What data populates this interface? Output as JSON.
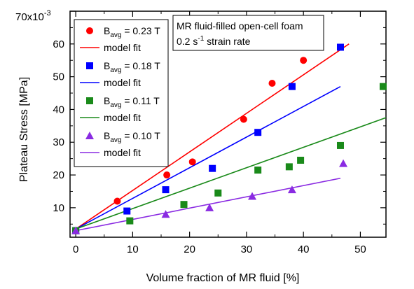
{
  "chart_data": {
    "type": "scatter",
    "xlabel": "Volume fraction of MR fluid [%]",
    "ylabel": "Plateau Stress [MPa]",
    "xlim": [
      -1,
      54.5
    ],
    "ylim": [
      1,
      70
    ],
    "x_ticks": [
      0,
      10,
      20,
      30,
      40,
      50
    ],
    "y_ticks": [
      10,
      20,
      30,
      40,
      50,
      60
    ],
    "y_top_label": "70x10",
    "y_top_exponent": "-3",
    "annotation": {
      "line1": "MR fluid-filled open-cell foam",
      "line2_prefix": "0.2 s",
      "line2_exponent": "-1",
      "line2_suffix": " strain rate"
    },
    "grid": false,
    "legend_position": "top-left",
    "series": [
      {
        "label_prefix": "B",
        "label_sub": "avg",
        "label_suffix": " = 0.23 T",
        "fit_label": "model fit",
        "marker": "circle",
        "color": "#ff0000",
        "points": [
          [
            0,
            3.0
          ],
          [
            7.3,
            12.0
          ],
          [
            16.0,
            20.0
          ],
          [
            20.5,
            24.0
          ],
          [
            29.5,
            37.0
          ],
          [
            34.5,
            48.0
          ],
          [
            40.0,
            55.0
          ]
        ],
        "fit": [
          [
            0,
            3.5
          ],
          [
            48,
            60.0
          ]
        ]
      },
      {
        "label_prefix": "B",
        "label_sub": "avg",
        "label_suffix": " = 0.18 T",
        "fit_label": "model fit",
        "marker": "square",
        "color": "#0000ff",
        "points": [
          [
            0,
            3.0
          ],
          [
            9.0,
            9.0
          ],
          [
            15.8,
            15.5
          ],
          [
            24.0,
            22.0
          ],
          [
            32.0,
            33.0
          ],
          [
            38.0,
            47.0
          ],
          [
            46.5,
            59.0
          ]
        ],
        "fit": [
          [
            0,
            3.5
          ],
          [
            46.5,
            47.0
          ]
        ]
      },
      {
        "label_prefix": "B",
        "label_sub": "avg",
        "label_suffix": " = 0.11 T",
        "fit_label": "model fit",
        "marker": "square",
        "color": "#1a8a1a",
        "points": [
          [
            0,
            3.0
          ],
          [
            9.5,
            6.0
          ],
          [
            19.0,
            11.0
          ],
          [
            25.0,
            14.5
          ],
          [
            32.0,
            21.5
          ],
          [
            37.5,
            22.5
          ],
          [
            39.5,
            24.5
          ],
          [
            46.5,
            29.0
          ],
          [
            54.0,
            47.0
          ]
        ],
        "fit": [
          [
            0,
            3.5
          ],
          [
            54.5,
            37.5
          ]
        ]
      },
      {
        "label_prefix": "B",
        "label_sub": "avg",
        "label_suffix": " = 0.10 T",
        "fit_label": "model fit",
        "marker": "triangle",
        "color": "#8a2be2",
        "points": [
          [
            0,
            3.0
          ],
          [
            15.8,
            8.0
          ],
          [
            23.5,
            10.0
          ],
          [
            31.0,
            13.5
          ],
          [
            38.0,
            15.5
          ],
          [
            47.0,
            23.5
          ]
        ],
        "fit": [
          [
            0,
            3.0
          ],
          [
            46.5,
            19.0
          ]
        ]
      }
    ]
  }
}
